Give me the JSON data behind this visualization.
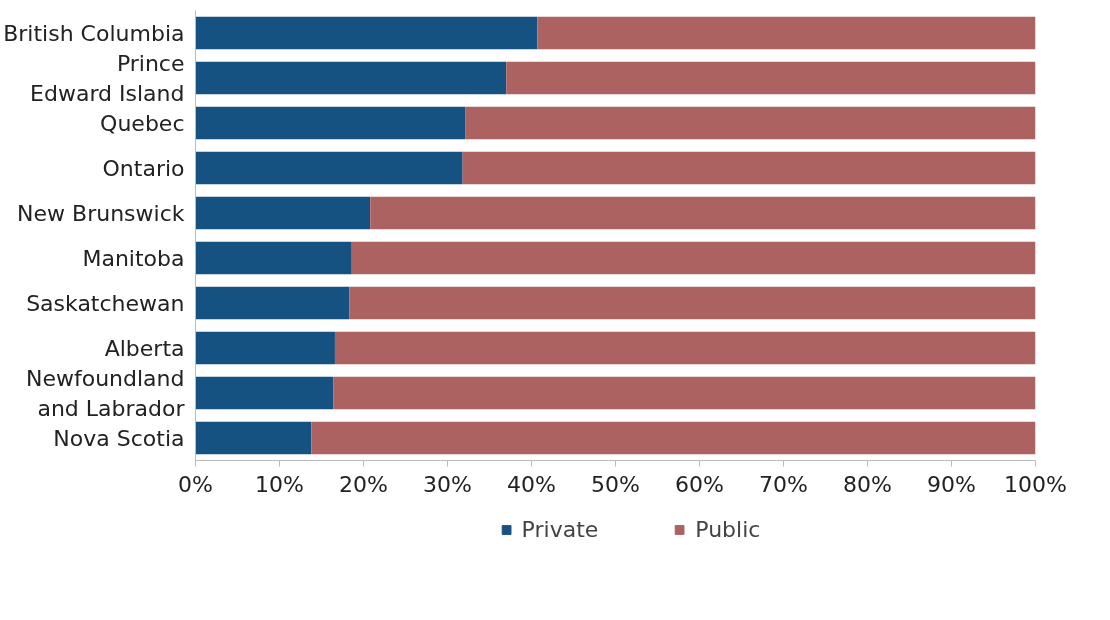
{
  "chart_data": {
    "type": "bar",
    "orientation": "horizontal",
    "stacked": true,
    "categories": [
      "British Columbia",
      "Prince\nEdward Island",
      "Quebec",
      "Ontario",
      "New Brunswick",
      "Manitoba",
      "Saskatchewan",
      "Alberta",
      "Newfoundland\nand Labrador",
      "Nova Scotia"
    ],
    "series": [
      {
        "name": "Private",
        "color": "#155282",
        "values": [
          40.7,
          37.0,
          32.1,
          31.8,
          20.8,
          18.6,
          18.3,
          16.6,
          16.4,
          13.8
        ]
      },
      {
        "name": "Public",
        "color": "#ad6262",
        "values": [
          59.3,
          63.0,
          67.9,
          68.2,
          79.2,
          81.4,
          81.7,
          83.4,
          83.6,
          86.2
        ]
      }
    ],
    "xlim": [
      0,
      100
    ],
    "xticks": [
      {
        "value": 0,
        "label": "0%"
      },
      {
        "value": 10,
        "label": "10%"
      },
      {
        "value": 20,
        "label": "20%"
      },
      {
        "value": 30,
        "label": "30%"
      },
      {
        "value": 40,
        "label": "40%"
      },
      {
        "value": 50,
        "label": "50%"
      },
      {
        "value": 60,
        "label": "60%"
      },
      {
        "value": 70,
        "label": "70%"
      },
      {
        "value": 80,
        "label": "80%"
      },
      {
        "value": 90,
        "label": "90%"
      },
      {
        "value": 100,
        "label": "100%"
      }
    ],
    "grid": false,
    "legend": "bottom"
  }
}
